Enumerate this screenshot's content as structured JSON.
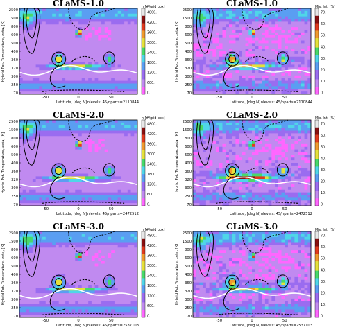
{
  "figure": {
    "panels": [
      {
        "title": "CLaMS-1.0",
        "cbar_title": "n [#/grid box]",
        "cbar_ticks": [
          "4800.",
          "4200.",
          "3600.",
          "3000.",
          "2400.",
          "1800.",
          "1200.",
          "600.",
          "0."
        ],
        "info": "nlevels: 45/nparts=2110844"
      },
      {
        "title": "CLaMS-1.0",
        "cbar_title": "Mix. Int. [%]",
        "cbar_ticks": [
          "70.",
          "60.",
          "50.",
          "40.",
          "30.",
          "20.",
          "10.",
          "0."
        ],
        "info": "nlevels: 45/nparts=2110844"
      },
      {
        "title": "CLaMS-2.0",
        "cbar_title": "n [#/grid box]",
        "cbar_ticks": [
          "4800.",
          "4200.",
          "3600.",
          "3000.",
          "2400.",
          "1800.",
          "1200.",
          "600.",
          "0."
        ],
        "info": "nlevels: 45/nparts=2472512"
      },
      {
        "title": "CLaMS-2.0",
        "cbar_title": "Mix. Int. [%]",
        "cbar_ticks": [
          "70.",
          "60.",
          "50.",
          "40.",
          "30.",
          "20.",
          "10.",
          "0."
        ],
        "info": "nlevels: 45/nparts=2472512"
      },
      {
        "title": "CLaMS-3.0",
        "cbar_title": "n [#/grid box]",
        "cbar_ticks": [
          "4800.",
          "4200.",
          "3600.",
          "3000.",
          "2400.",
          "1800.",
          "1200.",
          "600.",
          "0."
        ],
        "info": "nlevels: 45/nparts=2537103"
      },
      {
        "title": "CLaMS-3.0",
        "cbar_title": "Mix. Int. [%]",
        "cbar_ticks": [
          "70.",
          "60.",
          "50.",
          "40.",
          "30.",
          "20.",
          "10.",
          "0."
        ],
        "info": "nlevels: 45/nparts=2537103"
      }
    ]
  },
  "chart_data": {
    "type": "heatmap",
    "xlabel": "Latitude, [deg N]",
    "ylabel": "Hybrid Pot. Temperature, zeta, [K]",
    "xticks": [
      "-50",
      "0",
      "50"
    ],
    "xlim": [
      -90,
      90
    ],
    "yticks": [
      "2500",
      "1500",
      "800",
      "600",
      "500",
      "400",
      "360",
      "320",
      "300",
      "250",
      "70"
    ],
    "colormap": [
      "#ff66ff",
      "#c08af0",
      "#9a6cf0",
      "#5a9ef2",
      "#4fd6e8",
      "#48d96a",
      "#e5e13b",
      "#f09a2e",
      "#e13a1e",
      "#8a1010"
    ],
    "series": [
      {
        "name": "n [#/grid box]",
        "range": [
          0,
          4800
        ]
      },
      {
        "name": "Mix. Int. [%]",
        "range": [
          0,
          70
        ]
      }
    ]
  }
}
